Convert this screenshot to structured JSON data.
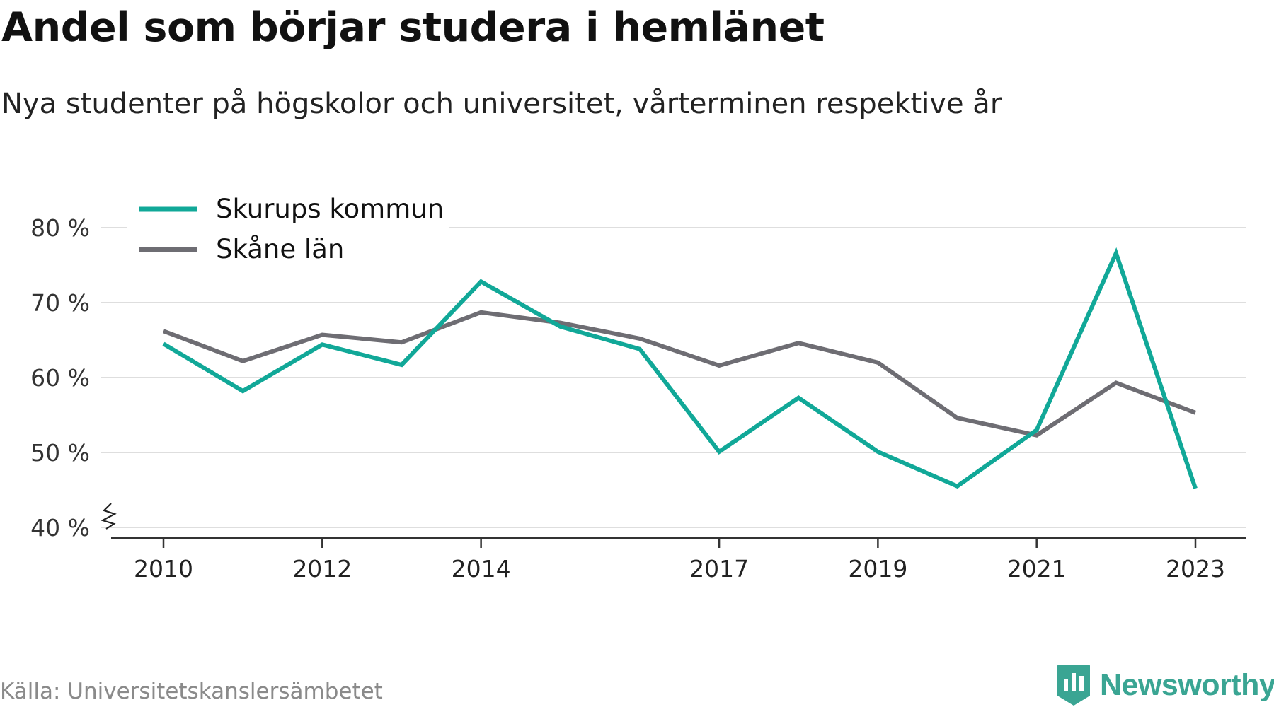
{
  "header": {
    "title": "Andel som börjar studera i hemlänet",
    "subtitle": "Nya studenter på högskolor och universitet, vårterminen respektive år"
  },
  "footer": {
    "source": "Källa: Universitetskanslersämbetet",
    "brand": "Newsworthy",
    "brand_color": "#3aa593"
  },
  "chart_data": {
    "type": "line",
    "x": [
      2010,
      2011,
      2012,
      2013,
      2014,
      2015,
      2016,
      2017,
      2018,
      2019,
      2020,
      2021,
      2022,
      2023
    ],
    "x_ticks": [
      2010,
      2012,
      2014,
      2017,
      2019,
      2021,
      2023
    ],
    "y_ticks": [
      40,
      50,
      60,
      70,
      80
    ],
    "y_tick_labels": [
      "40 %",
      "50 %",
      "60 %",
      "70 %",
      "80 %"
    ],
    "ylim": [
      40,
      82
    ],
    "grid": true,
    "axis_break": true,
    "legend_position": "top-left",
    "series": [
      {
        "name": "Skurups kommun",
        "color": "#11a898",
        "values": [
          64.5,
          58.2,
          64.4,
          61.7,
          72.8,
          66.8,
          63.8,
          50.1,
          57.3,
          50.1,
          45.5,
          53.0,
          76.6,
          45.2
        ]
      },
      {
        "name": "Skåne län",
        "color": "#6e6d73",
        "values": [
          66.2,
          62.2,
          65.7,
          64.7,
          68.7,
          67.3,
          65.2,
          61.6,
          64.6,
          62.0,
          54.6,
          52.3,
          59.3,
          55.3
        ]
      }
    ]
  }
}
